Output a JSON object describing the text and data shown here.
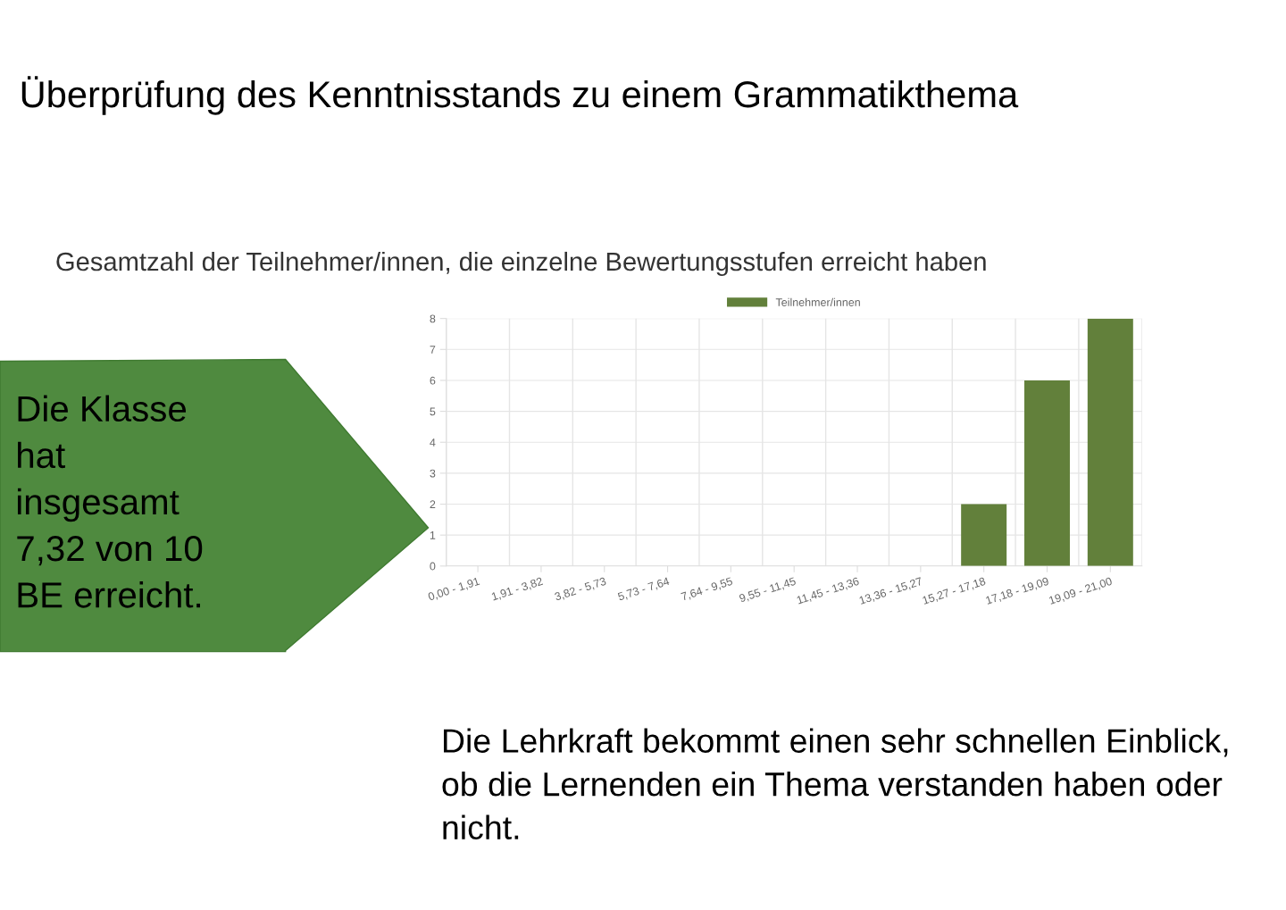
{
  "chart_data": {
    "type": "bar",
    "title": "Überprüfung des Kenntnisstands zu einem Grammatikthema",
    "subtitle": "Gesamtzahl der Teilnehmer/innen, die einzelne Bewertungsstufen erreicht haben",
    "categories": [
      "0,00 - 1,91",
      "1,91 - 3,82",
      "3,82 - 5,73",
      "5,73 - 7,64",
      "7,64 - 9,55",
      "9,55 - 11,45",
      "11,45 - 13,36",
      "13,36 - 15,27",
      "15,27 - 17,18",
      "17,18 - 19,09",
      "19,09 - 21,00"
    ],
    "series": [
      {
        "name": "Teilnehmer/innen",
        "color": "#62803b",
        "values": [
          0,
          0,
          0,
          0,
          0,
          0,
          0,
          0,
          2,
          6,
          8
        ]
      }
    ],
    "ylim": [
      0,
      8
    ],
    "yticks": [
      0,
      1,
      2,
      3,
      4,
      5,
      6,
      7,
      8
    ],
    "grid": true,
    "legend": "top",
    "annotations": [
      "Die Klasse hat insgesamt 7,32 von 10 BE erreicht.",
      "Die Lehrkraft bekommt einen sehr schnellen Einblick, ob die Lernenden ein Thema verstanden haben oder nicht."
    ]
  }
}
